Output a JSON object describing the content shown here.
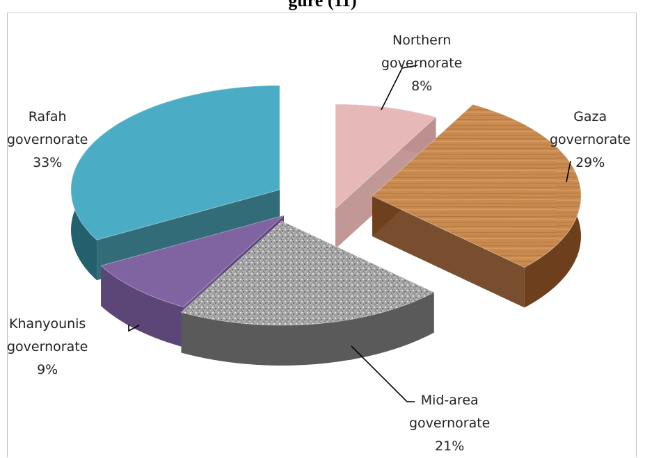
{
  "chart_data": {
    "type": "pie",
    "title": "",
    "partial_title_visible": "gure (11)",
    "slices": [
      {
        "label": "Northern governorate",
        "line1": "Northern",
        "line2": "governorate",
        "value": 8,
        "pct_text": "8%",
        "color": "#e6b9b8"
      },
      {
        "label": "Gaza governorate",
        "line1": "Gaza",
        "line2": "governorate",
        "value": 29,
        "pct_text": "29%",
        "color": "#c8864a"
      },
      {
        "label": "Mid-area governorate",
        "line1": "Mid-area",
        "line2": "governorate",
        "value": 21,
        "pct_text": "21%",
        "color": "#a9a9a9"
      },
      {
        "label": "Khanyounis governorate",
        "line1": "Khanyounis",
        "line2": "governorate",
        "value": 9,
        "pct_text": "9%",
        "color": "#8064a2"
      },
      {
        "label": "Rafah governorate",
        "line1": "Rafah",
        "line2": "governorate",
        "value": 33,
        "pct_text": "33%",
        "color": "#4bacc6"
      }
    ]
  }
}
